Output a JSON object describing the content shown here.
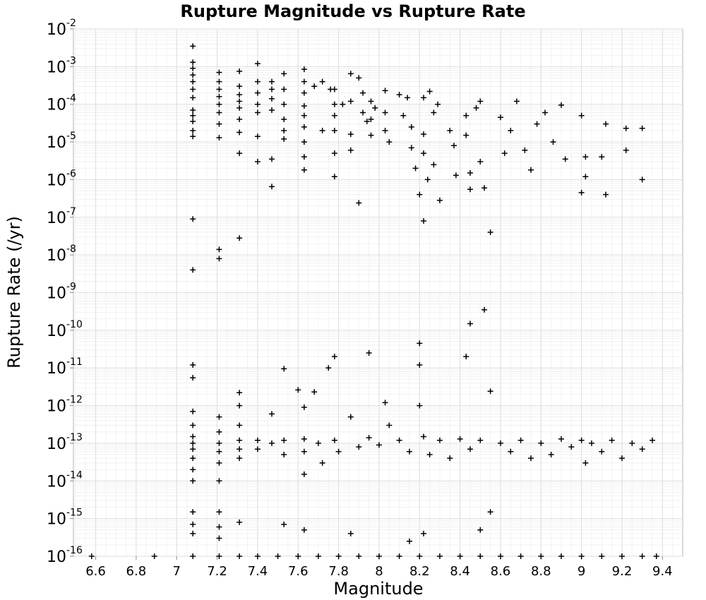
{
  "chart_data": {
    "type": "scatter",
    "title": "Rupture Magnitude vs Rupture Rate",
    "xlabel": "Magnitude",
    "ylabel": "Rupture Rate (/yr)",
    "xlim": [
      6.49,
      9.5
    ],
    "ylim": [
      1e-16,
      0.01
    ],
    "yscale": "log",
    "grid": true,
    "legend": "none",
    "marker": "plus",
    "marker_color": "#000000",
    "x_ticks": [
      6.6,
      6.8,
      7,
      7.2,
      7.4,
      7.6,
      7.8,
      8,
      8.2,
      8.4,
      8.6,
      8.8,
      9,
      9.2,
      9.4
    ],
    "x_tick_labels": [
      "6.6",
      "6.8",
      "7",
      "7.2",
      "7.4",
      "7.6",
      "7.8",
      "8",
      "8.2",
      "8.4",
      "8.6",
      "8.8",
      "9",
      "9.2",
      "9.4"
    ],
    "y_ticks": [
      {
        "value": 0.01,
        "base": "10",
        "exp": "-2"
      },
      {
        "value": 0.001,
        "base": "10",
        "exp": "-3"
      },
      {
        "value": 0.0001,
        "base": "10",
        "exp": "-4"
      },
      {
        "value": 1e-05,
        "base": "10",
        "exp": "-5"
      },
      {
        "value": 1e-06,
        "base": "10",
        "exp": "-6"
      },
      {
        "value": 1e-07,
        "base": "10",
        "exp": "-7"
      },
      {
        "value": 1e-08,
        "base": "10",
        "exp": "-8"
      },
      {
        "value": 1e-09,
        "base": "10",
        "exp": "-9"
      },
      {
        "value": 1e-10,
        "base": "10",
        "exp": "-10"
      },
      {
        "value": 1e-11,
        "base": "10",
        "exp": "-11"
      },
      {
        "value": 1e-12,
        "base": "10",
        "exp": "-12"
      },
      {
        "value": 1e-13,
        "base": "10",
        "exp": "-13"
      },
      {
        "value": 1e-14,
        "base": "10",
        "exp": "-14"
      },
      {
        "value": 1e-15,
        "base": "10",
        "exp": "-15"
      },
      {
        "value": 1e-16,
        "base": "10",
        "exp": "-16"
      }
    ],
    "points": [
      [
        6.58,
        1e-16
      ],
      [
        6.89,
        1e-16
      ],
      [
        7.08,
        1e-16
      ],
      [
        7.21,
        1e-16
      ],
      [
        7.31,
        1e-16
      ],
      [
        7.4,
        1e-16
      ],
      [
        7.5,
        1e-16
      ],
      [
        7.6,
        1e-16
      ],
      [
        7.7,
        1e-16
      ],
      [
        7.8,
        1e-16
      ],
      [
        7.9,
        1e-16
      ],
      [
        8.0,
        1e-16
      ],
      [
        8.1,
        1e-16
      ],
      [
        8.2,
        1e-16
      ],
      [
        8.3,
        1e-16
      ],
      [
        8.4,
        1e-16
      ],
      [
        8.5,
        1e-16
      ],
      [
        8.6,
        1e-16
      ],
      [
        8.7,
        1e-16
      ],
      [
        8.8,
        1e-16
      ],
      [
        8.9,
        1e-16
      ],
      [
        9.0,
        1e-16
      ],
      [
        9.1,
        1e-16
      ],
      [
        9.2,
        1e-16
      ],
      [
        9.3,
        1e-16
      ],
      [
        9.37,
        1e-16
      ],
      [
        7.08,
        0.0035
      ],
      [
        7.08,
        0.0013
      ],
      [
        7.08,
        0.0009
      ],
      [
        7.08,
        0.0006
      ],
      [
        7.08,
        0.0004
      ],
      [
        7.08,
        0.00025
      ],
      [
        7.08,
        0.00015
      ],
      [
        7.08,
        7e-05
      ],
      [
        7.08,
        5e-05
      ],
      [
        7.08,
        3.5e-05
      ],
      [
        7.08,
        2e-05
      ],
      [
        7.08,
        1.4e-05
      ],
      [
        7.21,
        0.0007
      ],
      [
        7.21,
        0.0004
      ],
      [
        7.21,
        0.00025
      ],
      [
        7.21,
        0.00016
      ],
      [
        7.21,
        0.0001
      ],
      [
        7.21,
        6e-05
      ],
      [
        7.21,
        3e-05
      ],
      [
        7.21,
        1.3e-05
      ],
      [
        7.31,
        0.00075
      ],
      [
        7.31,
        0.0003
      ],
      [
        7.31,
        0.00018
      ],
      [
        7.31,
        0.00012
      ],
      [
        7.31,
        8e-05
      ],
      [
        7.31,
        4e-05
      ],
      [
        7.31,
        1.8e-05
      ],
      [
        7.31,
        5e-06
      ],
      [
        7.4,
        0.0012
      ],
      [
        7.4,
        0.0004
      ],
      [
        7.4,
        0.0002
      ],
      [
        7.4,
        0.0001
      ],
      [
        7.4,
        6e-05
      ],
      [
        7.4,
        1.4e-05
      ],
      [
        7.4,
        3e-06
      ],
      [
        7.47,
        0.0004
      ],
      [
        7.47,
        0.00025
      ],
      [
        7.47,
        0.00014
      ],
      [
        7.47,
        7e-05
      ],
      [
        7.47,
        3.5e-06
      ],
      [
        7.47,
        6.5e-07
      ],
      [
        7.53,
        0.00065
      ],
      [
        7.53,
        0.00025
      ],
      [
        7.53,
        0.0001
      ],
      [
        7.53,
        4e-05
      ],
      [
        7.53,
        2e-05
      ],
      [
        7.53,
        1.2e-05
      ],
      [
        7.63,
        0.00085
      ],
      [
        7.63,
        0.0004
      ],
      [
        7.63,
        0.0002
      ],
      [
        7.63,
        9e-05
      ],
      [
        7.63,
        5e-05
      ],
      [
        7.63,
        2.5e-05
      ],
      [
        7.63,
        1e-05
      ],
      [
        7.63,
        4e-06
      ],
      [
        7.63,
        1.8e-06
      ],
      [
        7.68,
        0.0003
      ],
      [
        7.72,
        0.0004
      ],
      [
        7.76,
        0.00025
      ],
      [
        7.72,
        2e-05
      ],
      [
        7.78,
        0.00025
      ],
      [
        7.78,
        0.0001
      ],
      [
        7.78,
        5e-05
      ],
      [
        7.78,
        2e-05
      ],
      [
        7.78,
        5e-06
      ],
      [
        7.78,
        1.2e-06
      ],
      [
        7.82,
        0.0001
      ],
      [
        7.86,
        0.00065
      ],
      [
        7.86,
        0.00012
      ],
      [
        7.86,
        1.6e-05
      ],
      [
        7.86,
        6e-06
      ],
      [
        7.9,
        0.0005
      ],
      [
        7.92,
        0.0002
      ],
      [
        7.92,
        6e-05
      ],
      [
        7.94,
        3.5e-05
      ],
      [
        7.9,
        2.4e-07
      ],
      [
        7.96,
        0.00012
      ],
      [
        7.96,
        4e-05
      ],
      [
        7.96,
        1.5e-05
      ],
      [
        7.98,
        8e-05
      ],
      [
        8.03,
        0.00023
      ],
      [
        8.03,
        6e-05
      ],
      [
        8.03,
        2e-05
      ],
      [
        8.05,
        1e-05
      ],
      [
        8.1,
        0.00018
      ],
      [
        8.12,
        5e-05
      ],
      [
        8.14,
        0.00015
      ],
      [
        8.16,
        2.5e-05
      ],
      [
        8.16,
        7e-06
      ],
      [
        8.18,
        2e-06
      ],
      [
        8.2,
        4e-07
      ],
      [
        8.22,
        0.00015
      ],
      [
        8.22,
        1.6e-05
      ],
      [
        8.22,
        5e-06
      ],
      [
        8.24,
        1e-06
      ],
      [
        8.22,
        8e-08
      ],
      [
        8.25,
        0.00022
      ],
      [
        8.27,
        6e-05
      ],
      [
        8.29,
        0.0001
      ],
      [
        8.3,
        2.8e-07
      ],
      [
        8.27,
        2.5e-06
      ],
      [
        8.35,
        2e-05
      ],
      [
        8.37,
        8e-06
      ],
      [
        8.38,
        1.3e-06
      ],
      [
        8.43,
        5e-05
      ],
      [
        8.43,
        1.5e-05
      ],
      [
        8.45,
        1.5e-06
      ],
      [
        8.45,
        5.5e-07
      ],
      [
        8.48,
        8e-05
      ],
      [
        8.5,
        0.00012
      ],
      [
        8.5,
        3e-06
      ],
      [
        8.52,
        6e-07
      ],
      [
        8.55,
        4e-08
      ],
      [
        8.6,
        4.5e-05
      ],
      [
        8.62,
        5e-06
      ],
      [
        8.65,
        2e-05
      ],
      [
        8.68,
        0.00012
      ],
      [
        8.72,
        6e-06
      ],
      [
        8.75,
        1.8e-06
      ],
      [
        8.78,
        3e-05
      ],
      [
        8.82,
        6e-05
      ],
      [
        8.86,
        1e-05
      ],
      [
        8.9,
        9.5e-05
      ],
      [
        8.92,
        3.5e-06
      ],
      [
        9.0,
        5e-05
      ],
      [
        9.02,
        4e-06
      ],
      [
        9.02,
        1.2e-06
      ],
      [
        9.0,
        4.5e-07
      ],
      [
        9.1,
        4e-06
      ],
      [
        9.12,
        4e-07
      ],
      [
        9.12,
        3e-05
      ],
      [
        9.22,
        2.3e-05
      ],
      [
        9.22,
        6e-06
      ],
      [
        9.3,
        2.3e-05
      ],
      [
        9.3,
        1e-06
      ],
      [
        7.08,
        9e-08
      ],
      [
        7.08,
        4e-09
      ],
      [
        7.21,
        1.4e-08
      ],
      [
        7.21,
        8e-09
      ],
      [
        7.31,
        2.8e-08
      ],
      [
        8.52,
        3.5e-10
      ],
      [
        8.45,
        1.5e-10
      ],
      [
        8.43,
        2e-11
      ],
      [
        8.2,
        4.5e-11
      ],
      [
        8.2,
        1.2e-11
      ],
      [
        7.95,
        2.5e-11
      ],
      [
        7.78,
        2e-11
      ],
      [
        7.75,
        1e-11
      ],
      [
        7.53,
        9.5e-12
      ],
      [
        7.6,
        2.6e-12
      ],
      [
        7.68,
        2.3e-12
      ],
      [
        7.31,
        2.2e-12
      ],
      [
        7.08,
        1.2e-11
      ],
      [
        7.08,
        5.5e-12
      ],
      [
        7.08,
        7e-13
      ],
      [
        7.08,
        3e-13
      ],
      [
        7.08,
        1.5e-13
      ],
      [
        7.08,
        1e-13
      ],
      [
        7.08,
        7e-14
      ],
      [
        7.08,
        4e-14
      ],
      [
        7.08,
        2e-14
      ],
      [
        7.08,
        1e-14
      ],
      [
        7.21,
        5e-13
      ],
      [
        7.21,
        2e-13
      ],
      [
        7.21,
        1e-13
      ],
      [
        7.21,
        6e-14
      ],
      [
        7.21,
        3e-14
      ],
      [
        7.21,
        1e-14
      ],
      [
        7.31,
        1e-12
      ],
      [
        7.31,
        3e-13
      ],
      [
        7.31,
        1.2e-13
      ],
      [
        7.31,
        7e-14
      ],
      [
        7.31,
        4e-14
      ],
      [
        7.4,
        1.2e-13
      ],
      [
        7.4,
        7e-14
      ],
      [
        7.47,
        6e-13
      ],
      [
        7.47,
        1e-13
      ],
      [
        7.53,
        1.2e-13
      ],
      [
        7.53,
        5e-14
      ],
      [
        7.63,
        9e-13
      ],
      [
        7.63,
        1.3e-13
      ],
      [
        7.63,
        6e-14
      ],
      [
        7.63,
        1.5e-14
      ],
      [
        7.7,
        1e-13
      ],
      [
        7.72,
        3e-14
      ],
      [
        7.78,
        1.2e-13
      ],
      [
        7.8,
        6e-14
      ],
      [
        7.86,
        5e-13
      ],
      [
        7.9,
        8e-14
      ],
      [
        7.95,
        1.4e-13
      ],
      [
        8.0,
        9e-14
      ],
      [
        8.03,
        1.2e-12
      ],
      [
        8.05,
        3e-13
      ],
      [
        8.1,
        1.2e-13
      ],
      [
        8.15,
        6e-14
      ],
      [
        8.2,
        1e-12
      ],
      [
        8.22,
        1.5e-13
      ],
      [
        8.25,
        5e-14
      ],
      [
        8.3,
        1.2e-13
      ],
      [
        8.35,
        4e-14
      ],
      [
        8.4,
        1.3e-13
      ],
      [
        8.45,
        7e-14
      ],
      [
        8.5,
        1.2e-13
      ],
      [
        8.55,
        2.4e-12
      ],
      [
        8.6,
        1e-13
      ],
      [
        8.65,
        6e-14
      ],
      [
        8.7,
        1.2e-13
      ],
      [
        8.75,
        4e-14
      ],
      [
        8.8,
        1e-13
      ],
      [
        8.85,
        5e-14
      ],
      [
        8.9,
        1.3e-13
      ],
      [
        8.95,
        8e-14
      ],
      [
        9.0,
        1.2e-13
      ],
      [
        9.02,
        3e-14
      ],
      [
        9.05,
        1e-13
      ],
      [
        9.1,
        6e-14
      ],
      [
        9.15,
        1.2e-13
      ],
      [
        9.2,
        4e-14
      ],
      [
        9.25,
        1e-13
      ],
      [
        9.3,
        7e-14
      ],
      [
        9.35,
        1.2e-13
      ],
      [
        7.08,
        1.5e-15
      ],
      [
        7.08,
        7e-16
      ],
      [
        7.08,
        4e-16
      ],
      [
        7.21,
        1.5e-15
      ],
      [
        7.21,
        6e-16
      ],
      [
        7.21,
        3e-16
      ],
      [
        7.31,
        8e-16
      ],
      [
        7.53,
        7e-16
      ],
      [
        7.63,
        5e-16
      ],
      [
        7.86,
        4e-16
      ],
      [
        8.15,
        2.5e-16
      ],
      [
        8.22,
        4e-16
      ],
      [
        8.5,
        5e-16
      ],
      [
        8.55,
        1.5e-15
      ]
    ]
  }
}
